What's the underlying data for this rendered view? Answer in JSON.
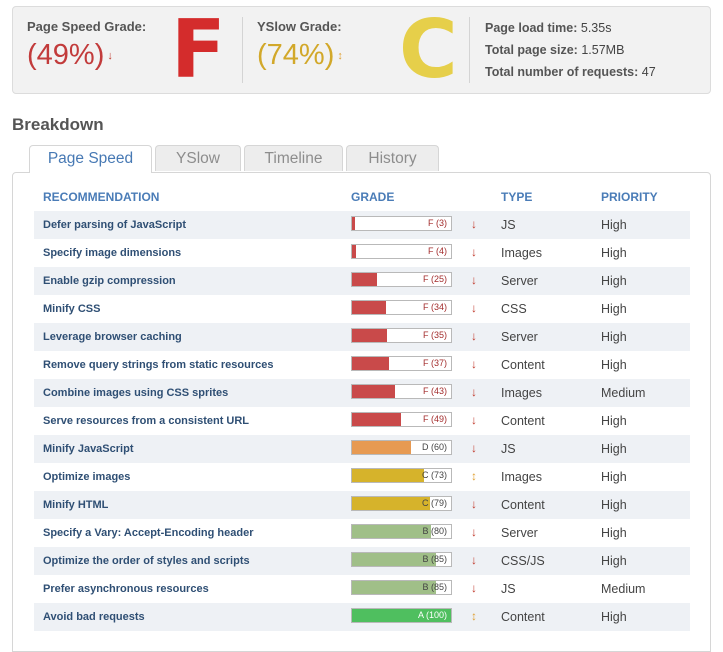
{
  "summary": {
    "pagespeed": {
      "label": "Page Speed Grade:",
      "percent": "(49%)",
      "letter": "F",
      "arrow": "↓"
    },
    "yslow": {
      "label": "YSlow Grade:",
      "percent": "(74%)",
      "letter": "C",
      "arrow": "↕"
    },
    "stats": [
      {
        "label": "Page load time:",
        "value": "5.35s"
      },
      {
        "label": "Total page size:",
        "value": "1.57MB"
      },
      {
        "label": "Total number of requests:",
        "value": "47"
      }
    ]
  },
  "breakdown": {
    "title": "Breakdown"
  },
  "tabs": [
    {
      "label": "Page Speed",
      "active": true
    },
    {
      "label": "YSlow",
      "active": false
    },
    {
      "label": "Timeline",
      "active": false
    },
    {
      "label": "History",
      "active": false
    }
  ],
  "table": {
    "headers": {
      "recommendation": "RECOMMENDATION",
      "grade": "GRADE",
      "type": "TYPE",
      "priority": "PRIORITY"
    },
    "rows": [
      {
        "rec": "Defer parsing of JavaScript",
        "grade": "F (3)",
        "score": 3,
        "arrow": "↓",
        "type": "JS",
        "priority": "High"
      },
      {
        "rec": "Specify image dimensions",
        "grade": "F (4)",
        "score": 4,
        "arrow": "↓",
        "type": "Images",
        "priority": "High"
      },
      {
        "rec": "Enable gzip compression",
        "grade": "F (25)",
        "score": 25,
        "arrow": "↓",
        "type": "Server",
        "priority": "High"
      },
      {
        "rec": "Minify CSS",
        "grade": "F (34)",
        "score": 34,
        "arrow": "↓",
        "type": "CSS",
        "priority": "High"
      },
      {
        "rec": "Leverage browser caching",
        "grade": "F (35)",
        "score": 35,
        "arrow": "↓",
        "type": "Server",
        "priority": "High"
      },
      {
        "rec": "Remove query strings from static resources",
        "grade": "F (37)",
        "score": 37,
        "arrow": "↓",
        "type": "Content",
        "priority": "High"
      },
      {
        "rec": "Combine images using CSS sprites",
        "grade": "F (43)",
        "score": 43,
        "arrow": "↓",
        "type": "Images",
        "priority": "Medium"
      },
      {
        "rec": "Serve resources from a consistent URL",
        "grade": "F (49)",
        "score": 49,
        "arrow": "↓",
        "type": "Content",
        "priority": "High"
      },
      {
        "rec": "Minify JavaScript",
        "grade": "D (60)",
        "score": 60,
        "arrow": "↓",
        "type": "JS",
        "priority": "High"
      },
      {
        "rec": "Optimize images",
        "grade": "C (73)",
        "score": 73,
        "arrow": "↕",
        "type": "Images",
        "priority": "High"
      },
      {
        "rec": "Minify HTML",
        "grade": "C (79)",
        "score": 79,
        "arrow": "↓",
        "type": "Content",
        "priority": "High"
      },
      {
        "rec": "Specify a Vary: Accept-Encoding header",
        "grade": "B (80)",
        "score": 80,
        "arrow": "↓",
        "type": "Server",
        "priority": "High"
      },
      {
        "rec": "Optimize the order of styles and scripts",
        "grade": "B (85)",
        "score": 85,
        "arrow": "↓",
        "type": "CSS/JS",
        "priority": "High"
      },
      {
        "rec": "Prefer asynchronous resources",
        "grade": "B (85)",
        "score": 85,
        "arrow": "↓",
        "type": "JS",
        "priority": "Medium"
      },
      {
        "rec": "Avoid bad requests",
        "grade": "A (100)",
        "score": 100,
        "arrow": "↕",
        "type": "Content",
        "priority": "High"
      }
    ]
  },
  "colors": {
    "grade_f": "#c94a4a",
    "grade_d": "#e79a52",
    "grade_c": "#d6b32b",
    "grade_b": "#a0bf88",
    "grade_a": "#4fbf5f",
    "arrow_down": "#c0392b",
    "arrow_updown": "#e0a032",
    "letter_f": "#d42c2c",
    "letter_c": "#e6cf4a",
    "link": "#4779b4"
  }
}
